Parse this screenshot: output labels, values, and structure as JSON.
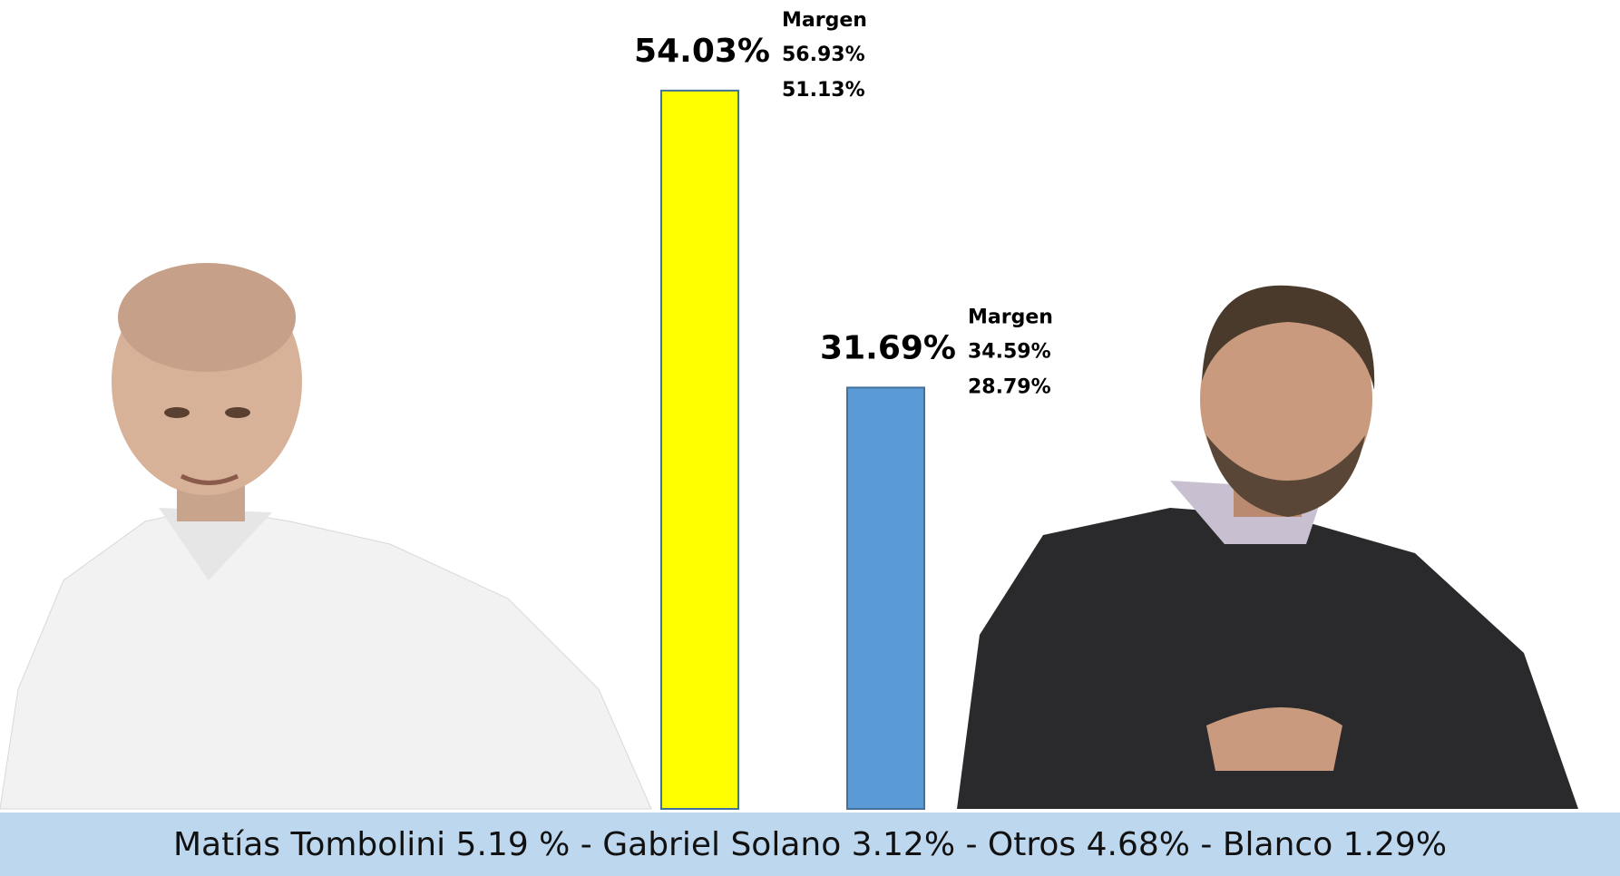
{
  "chart_data": {
    "type": "bar",
    "categories": [
      null,
      null
    ],
    "values": [
      54.03,
      31.69
    ],
    "value_labels": [
      "54.03%",
      "31.69%"
    ],
    "colors": [
      "#ffff00",
      "#5b9bd5"
    ],
    "ylim": [
      0,
      56
    ],
    "margins": [
      [
        "Margen",
        "56.93%",
        "51.13%"
      ],
      [
        "Margen",
        "34.59%",
        "28.79%"
      ]
    ],
    "footer": "Matías Tombolini 5.19 % - Gabriel Solano 3.12% - Otros 4.68% - Blanco 1.29%"
  }
}
